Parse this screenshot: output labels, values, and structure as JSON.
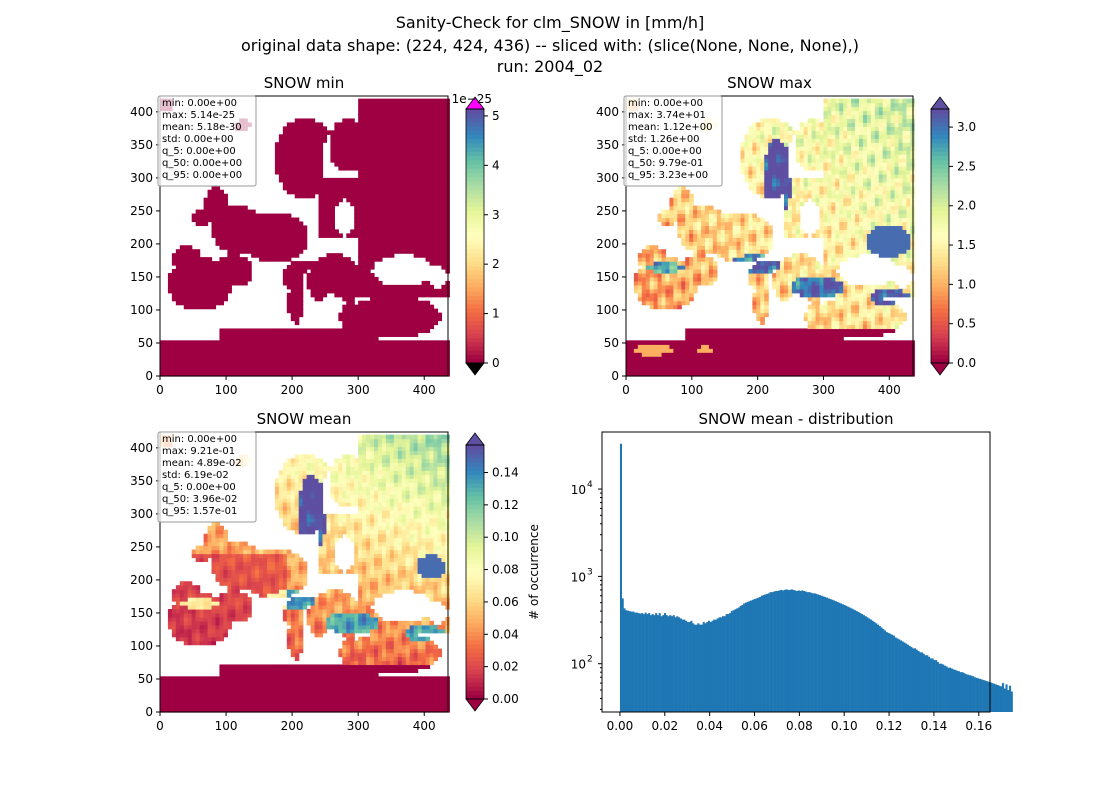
{
  "figure": {
    "title_line1": "Sanity-Check for clm_SNOW in [mm/h]",
    "title_line2": "original data shape: (224, 424, 436) -- sliced with: (slice(None, None, None),)",
    "title_line3": "run: 2004_02"
  },
  "colors": {
    "spectral": [
      "#9e0142",
      "#d53e4f",
      "#f46d43",
      "#fdae61",
      "#fee08b",
      "#ffffbf",
      "#e6f598",
      "#abdda4",
      "#66c2a5",
      "#3288bd",
      "#5e4fa2"
    ],
    "over_min_colorbar": "#ff00ff",
    "under": "#000000",
    "histogram": "#1f77b4"
  },
  "chart_data": [
    {
      "type": "heatmap",
      "title": "SNOW min",
      "xlim": [
        0,
        436
      ],
      "ylim": [
        0,
        424
      ],
      "xticks": [
        0,
        100,
        200,
        300,
        400
      ],
      "yticks": [
        0,
        50,
        100,
        150,
        200,
        250,
        300,
        350,
        400
      ],
      "colorbar": {
        "min": 0,
        "max": 5.14,
        "ticks": [
          0,
          1,
          2,
          3,
          4,
          5
        ],
        "tick_labels": [
          "0",
          "1",
          "2",
          "3",
          "4",
          "5"
        ],
        "offset_label": "1e−25",
        "extend": "both",
        "over_color": "#ff00ff"
      },
      "field": "uniform_low",
      "stats": [
        "min: 0.00e+00",
        "max: 5.14e-25",
        "mean: 5.18e-30",
        "std: 0.00e+00",
        "q_5: 0.00e+00",
        "q_50: 0.00e+00",
        "q_95: 0.00e+00"
      ]
    },
    {
      "type": "heatmap",
      "title": "SNOW max",
      "xlim": [
        0,
        436
      ],
      "ylim": [
        0,
        424
      ],
      "xticks": [
        0,
        100,
        200,
        300,
        400
      ],
      "yticks": [
        0,
        50,
        100,
        150,
        200,
        250,
        300,
        350,
        400
      ],
      "colorbar": {
        "min": 0,
        "max": 3.23,
        "ticks": [
          0,
          0.5,
          1,
          1.5,
          2,
          2.5,
          3
        ],
        "tick_labels": [
          "0.0",
          "0.5",
          "1.0",
          "1.5",
          "2.0",
          "2.5",
          "3.0"
        ],
        "offset_label": "",
        "extend": "both"
      },
      "field": "snow_max",
      "stats": [
        "min: 0.00e+00",
        "max: 3.74e+01",
        "mean: 1.12e+00",
        "std: 1.26e+00",
        "q_5: 0.00e+00",
        "q_50: 9.79e-01",
        "q_95: 3.23e+00"
      ]
    },
    {
      "type": "heatmap",
      "title": "SNOW mean",
      "xlim": [
        0,
        436
      ],
      "ylim": [
        0,
        424
      ],
      "xticks": [
        0,
        100,
        200,
        300,
        400
      ],
      "yticks": [
        0,
        50,
        100,
        150,
        200,
        250,
        300,
        350,
        400
      ],
      "colorbar": {
        "min": 0,
        "max": 0.157,
        "ticks": [
          0,
          0.02,
          0.04,
          0.06,
          0.08,
          0.1,
          0.12,
          0.14
        ],
        "tick_labels": [
          "0.00",
          "0.02",
          "0.04",
          "0.06",
          "0.08",
          "0.10",
          "0.12",
          "0.14"
        ],
        "offset_label": "",
        "extend": "both"
      },
      "field": "snow_mean",
      "stats": [
        "min: 0.00e+00",
        "max: 9.21e-01",
        "mean: 4.89e-02",
        "std: 6.19e-02",
        "q_5: 0.00e+00",
        "q_50: 3.96e-02",
        "q_95: 1.57e-01"
      ]
    },
    {
      "type": "bar",
      "title": "SNOW mean - distribution",
      "xlabel": "",
      "ylabel": "# of occurrence",
      "yscale": "log",
      "xlim": [
        -0.008,
        0.165
      ],
      "ylim": [
        28,
        45000
      ],
      "xticks": [
        0,
        0.02,
        0.04,
        0.06,
        0.08,
        0.1,
        0.12,
        0.14,
        0.16
      ],
      "xtick_labels": [
        "0.00",
        "0.02",
        "0.04",
        "0.06",
        "0.08",
        "0.10",
        "0.12",
        "0.14",
        "0.16"
      ],
      "yticks": [
        100,
        1000,
        10000
      ],
      "ytick_labels": [
        "10",
        "10",
        "10"
      ],
      "ytick_exponents": [
        "2",
        "3",
        "4"
      ],
      "bin_start": 0,
      "bin_width": 0.000785,
      "counts": [
        33000,
        560,
        430,
        410,
        405,
        400,
        395,
        395,
        385,
        385,
        380,
        375,
        380,
        370,
        385,
        370,
        380,
        360,
        370,
        360,
        380,
        360,
        380,
        350,
        360,
        380,
        360,
        350,
        360,
        350,
        360,
        340,
        350,
        340,
        330,
        320,
        320,
        310,
        300,
        300,
        310,
        290,
        280,
        280,
        290,
        280,
        280,
        300,
        290,
        300,
        310,
        300,
        310,
        320,
        320,
        330,
        340,
        340,
        350,
        350,
        370,
        370,
        380,
        400,
        410,
        420,
        430,
        440,
        460,
        470,
        490,
        500,
        510,
        520,
        530,
        540,
        550,
        560,
        570,
        580,
        600,
        610,
        620,
        630,
        640,
        660,
        660,
        670,
        680,
        680,
        690,
        700,
        690,
        700,
        710,
        700,
        700,
        710,
        700,
        690,
        680,
        690,
        680,
        690,
        680,
        670,
        660,
        660,
        650,
        640,
        640,
        630,
        620,
        610,
        600,
        590,
        580,
        570,
        560,
        550,
        540,
        530,
        520,
        510,
        500,
        490,
        480,
        470,
        460,
        450,
        440,
        430,
        420,
        410,
        400,
        390,
        380,
        370,
        360,
        350,
        340,
        330,
        320,
        310,
        300,
        290,
        280,
        270,
        260,
        250,
        240,
        230,
        225,
        220,
        215,
        210,
        200,
        195,
        190,
        185,
        180,
        175,
        170,
        165,
        160,
        155,
        150,
        150,
        145,
        140,
        135,
        135,
        130,
        125,
        125,
        120,
        115,
        115,
        110,
        110,
        105,
        100,
        100,
        98,
        95,
        93,
        90,
        90,
        88,
        86,
        85,
        83,
        82,
        80,
        80,
        78,
        76,
        75,
        74,
        73,
        72,
        70,
        69,
        68,
        67,
        66,
        65,
        64,
        63,
        62,
        61,
        60,
        59,
        58,
        57,
        56,
        55,
        60,
        52,
        58,
        50,
        56,
        48
      ]
    }
  ]
}
